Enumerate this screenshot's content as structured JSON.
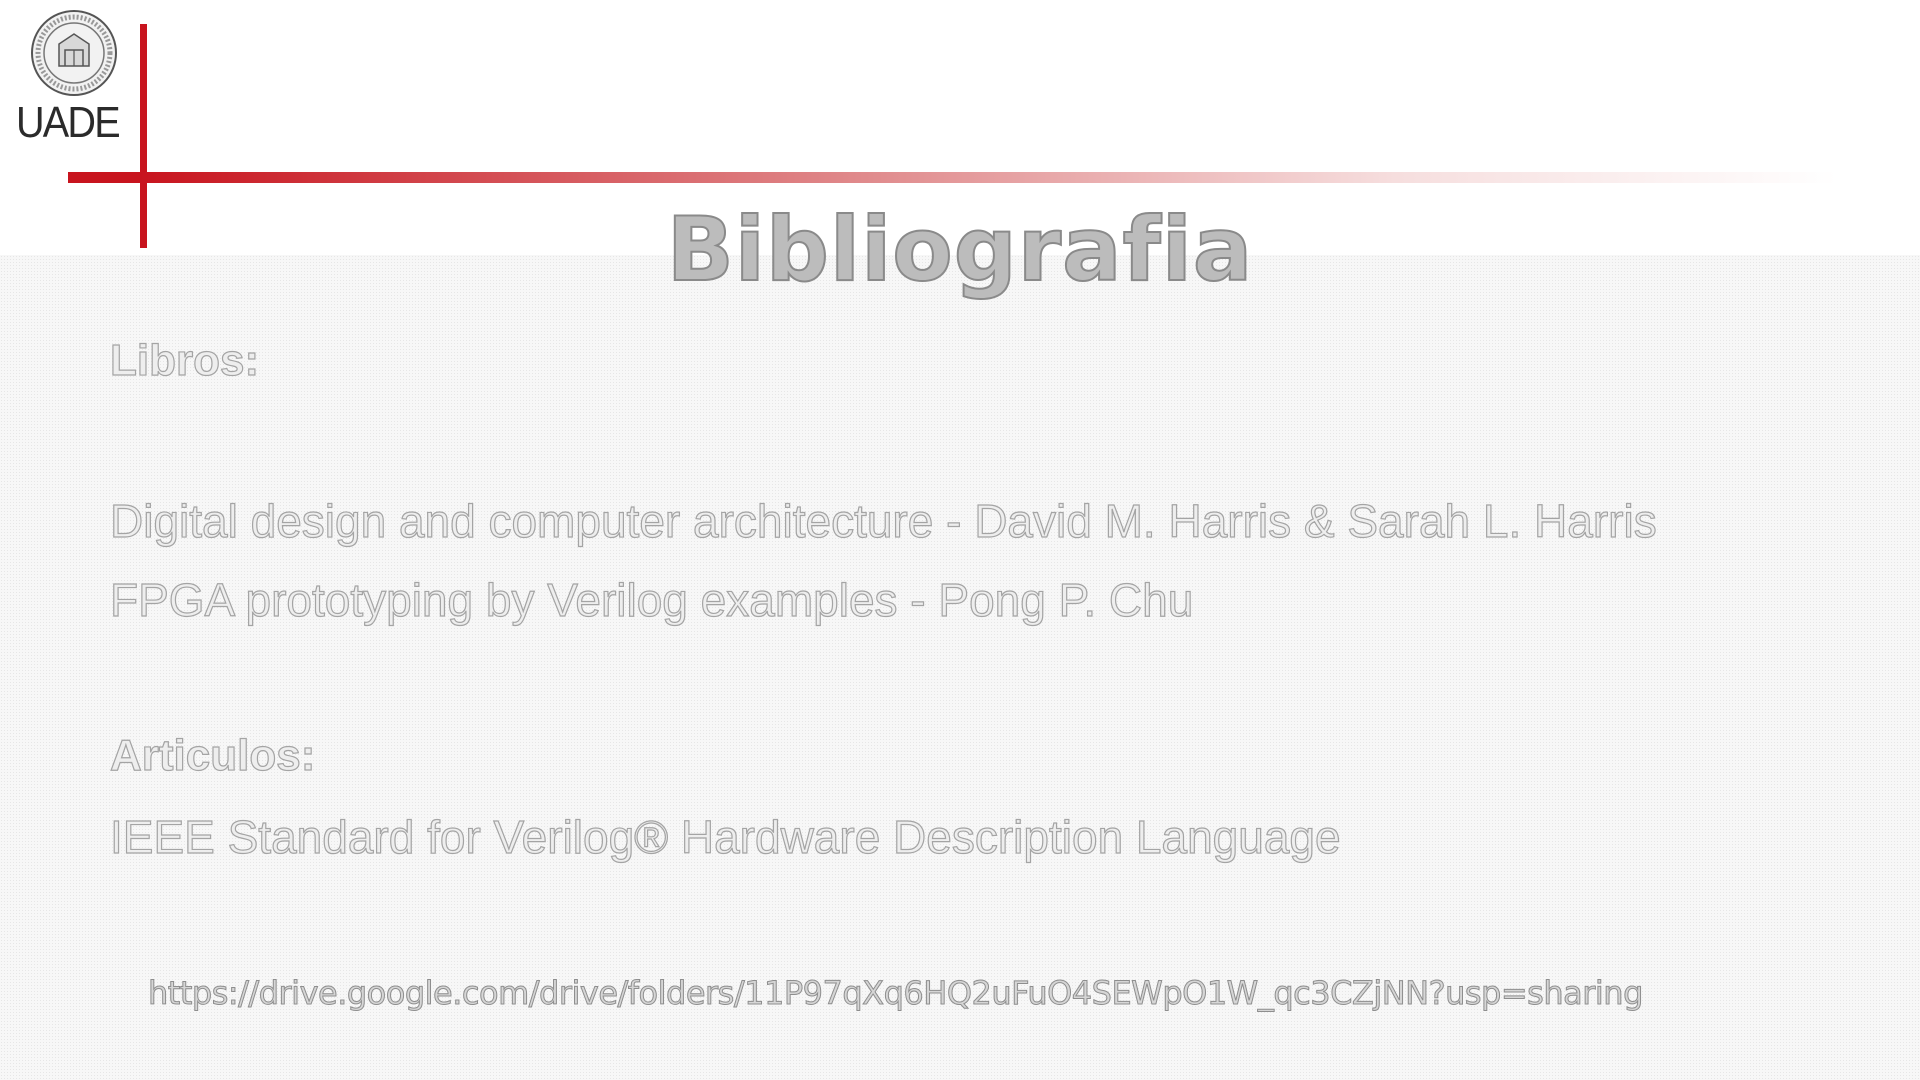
{
  "logo": {
    "name": "UADE"
  },
  "slide": {
    "title": "Bibliografia",
    "books_heading": "Libros:",
    "books": [
      "Digital design and computer architecture - David M. Harris & Sarah L. Harris",
      "FPGA prototyping by Verilog examples - Pong P. Chu"
    ],
    "articles_heading": "Articulos:",
    "articles": [
      "IEEE Standard for Verilog® Hardware Description Language"
    ],
    "link": "https://drive.google.com/drive/folders/11P97qXq6HQ2uFuO4SEWpO1W_qc3CZjNN?usp=sharing"
  },
  "colors": {
    "accent_red": "#c8141e",
    "text_outline": "#a4a4a4"
  }
}
